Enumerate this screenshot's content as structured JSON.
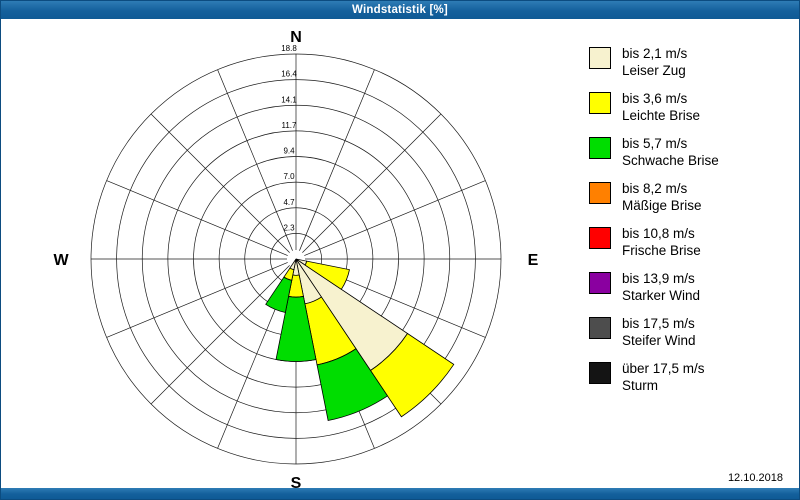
{
  "window": {
    "title": "Windstatistik [%]",
    "date": "12.10.2018"
  },
  "compass": {
    "n": "N",
    "e": "E",
    "s": "S",
    "w": "W"
  },
  "legend": [
    {
      "speed": "bis 2,1 m/s",
      "name": "Leiser Zug",
      "color": "#f7f2cf"
    },
    {
      "speed": "bis 3,6 m/s",
      "name": "Leichte Brise",
      "color": "#ffff00"
    },
    {
      "speed": "bis 5,7 m/s",
      "name": "Schwache Brise",
      "color": "#00dd00"
    },
    {
      "speed": "bis 8,2 m/s",
      "name": "Mäßige Brise",
      "color": "#ff8000"
    },
    {
      "speed": "bis 10,8 m/s",
      "name": "Frische Brise",
      "color": "#ff0000"
    },
    {
      "speed": "bis 13,9 m/s",
      "name": "Starker Wind",
      "color": "#8a00a0"
    },
    {
      "speed": "bis 17,5 m/s",
      "name": "Steifer Wind",
      "color": "#4d4d4d"
    },
    {
      "speed": "über 17,5 m/s",
      "name": "Sturm",
      "color": "#141414"
    }
  ],
  "chart_data": {
    "type": "windrose",
    "title": "Windstatistik [%]",
    "unit": "%",
    "rmax": 18.8,
    "ring_labels": [
      "2.3",
      "4.7",
      "7.0",
      "9.4",
      "11.7",
      "14.1",
      "16.4",
      "18.8"
    ],
    "grid": true,
    "legend_position": "right",
    "directions": [
      "N",
      "NNE",
      "NE",
      "ENE",
      "E",
      "ESE",
      "SE",
      "SSE",
      "S",
      "SSW",
      "SW",
      "WSW",
      "W",
      "WNW",
      "NW",
      "NNW"
    ],
    "series": [
      {
        "name": "bis 2,1 m/s",
        "color": "#f7f2cf",
        "values": [
          0,
          0,
          0,
          0,
          0,
          1.0,
          12.3,
          4.2,
          1.5,
          1.0,
          0,
          0,
          0,
          0,
          0,
          0
        ]
      },
      {
        "name": "bis 3,6 m/s",
        "color": "#ffff00",
        "values": [
          0,
          0,
          0,
          0,
          0,
          4.0,
          5.1,
          5.7,
          2.0,
          1.0,
          0,
          0,
          0,
          0,
          0,
          0
        ]
      },
      {
        "name": "bis 5,7 m/s",
        "color": "#00dd00",
        "values": [
          0,
          0,
          0,
          0,
          0,
          0,
          0,
          5.2,
          5.9,
          3.0,
          0,
          0,
          0,
          0,
          0,
          0
        ]
      },
      {
        "name": "bis 8,2 m/s",
        "color": "#ff8000",
        "values": [
          0,
          0,
          0,
          0,
          0,
          0,
          0,
          0,
          0,
          0,
          0,
          0,
          0,
          0,
          0,
          0
        ]
      },
      {
        "name": "bis 10,8 m/s",
        "color": "#ff0000",
        "values": [
          0,
          0,
          0,
          0,
          0,
          0,
          0,
          0,
          0,
          0,
          0,
          0,
          0,
          0,
          0,
          0
        ]
      },
      {
        "name": "bis 13,9 m/s",
        "color": "#8a00a0",
        "values": [
          0,
          0,
          0,
          0,
          0,
          0,
          0,
          0,
          0,
          0,
          0,
          0,
          0,
          0,
          0,
          0
        ]
      },
      {
        "name": "bis 17,5 m/s",
        "color": "#4d4d4d",
        "values": [
          0,
          0,
          0,
          0,
          0,
          0,
          0,
          0,
          0,
          0,
          0,
          0,
          0,
          0,
          0,
          0
        ]
      },
      {
        "name": "über 17,5 m/s",
        "color": "#141414",
        "values": [
          0,
          0,
          0,
          0,
          0,
          0,
          0,
          0,
          0,
          0,
          0,
          0,
          0,
          0,
          0,
          0
        ]
      }
    ]
  }
}
